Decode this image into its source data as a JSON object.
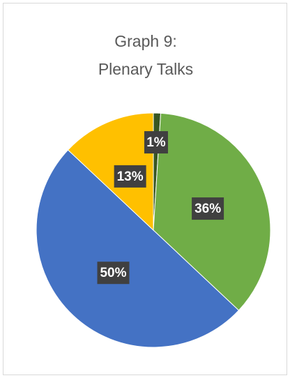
{
  "chart_data": {
    "type": "pie",
    "title": [
      "Graph 9:",
      "Plenary Talks"
    ],
    "values": [
      1,
      36,
      50,
      13
    ],
    "value_labels": [
      "1%",
      "36%",
      "50%",
      "13%"
    ],
    "colors": [
      "#375623",
      "#70ad47",
      "#4472c4",
      "#ffc000"
    ]
  }
}
